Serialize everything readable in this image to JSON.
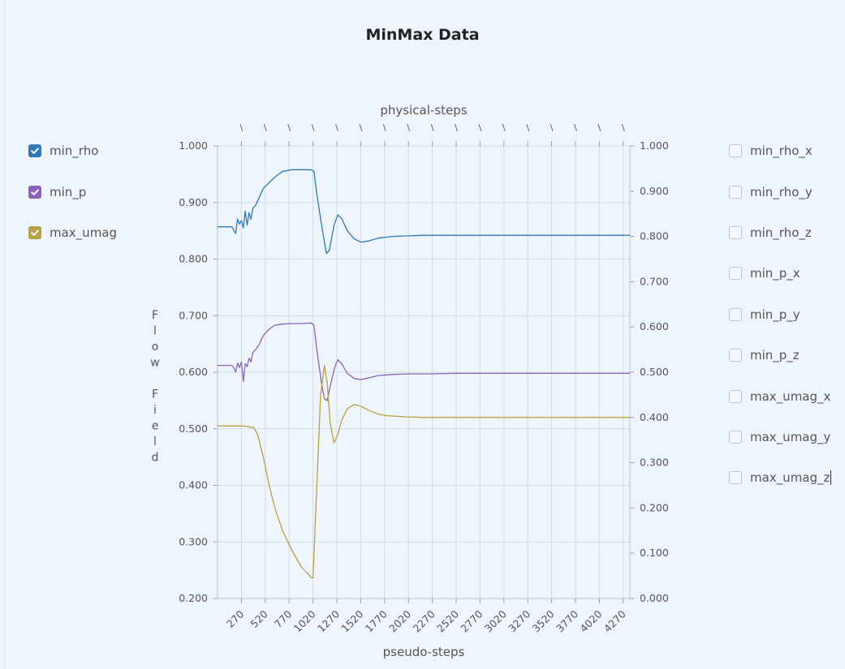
{
  "title": "MinMax Data",
  "left_legend": [
    {
      "label": "min_rho",
      "checked": true,
      "color": "#2f79b6"
    },
    {
      "label": "min_p",
      "checked": true,
      "color": "#8a63b8"
    },
    {
      "label": "max_umag",
      "checked": true,
      "color": "#b89f48"
    }
  ],
  "right_legend": [
    {
      "label": "min_rho_x",
      "checked": false
    },
    {
      "label": "min_rho_y",
      "checked": false
    },
    {
      "label": "min_rho_z",
      "checked": false
    },
    {
      "label": "min_p_x",
      "checked": false
    },
    {
      "label": "min_p_y",
      "checked": false
    },
    {
      "label": "min_p_z",
      "checked": false
    },
    {
      "label": "max_umag_x",
      "checked": false
    },
    {
      "label": "max_umag_y",
      "checked": false
    },
    {
      "label": "max_umag_z",
      "checked": false
    }
  ],
  "chart_data": {
    "type": "line",
    "top_xlabel": "physical-steps",
    "top_tick_labels": [
      "\\",
      "\\",
      "\\",
      "\\",
      "\\",
      "\\",
      "\\",
      "\\",
      "\\",
      "\\",
      "\\",
      "\\",
      "\\",
      "\\",
      "\\",
      "\\",
      "\\"
    ],
    "xlabel": "pseudo-steps",
    "ylabel": "Flow Field",
    "x_ticks": [
      270,
      520,
      770,
      1020,
      1270,
      1520,
      1770,
      2020,
      2270,
      2520,
      2770,
      3020,
      3270,
      3520,
      3770,
      4020,
      4270
    ],
    "xlim": [
      20,
      4340
    ],
    "ylim_left": [
      0.2,
      1.0
    ],
    "ylim_right": [
      0.0,
      1.0
    ],
    "left_ticks": [
      "0.200",
      "0.300",
      "0.400",
      "0.500",
      "0.600",
      "0.700",
      "0.800",
      "0.900",
      "1.000"
    ],
    "right_ticks": [
      "0.000",
      "0.100",
      "0.200",
      "0.300",
      "0.400",
      "0.500",
      "0.600",
      "0.700",
      "0.800",
      "0.900",
      "1.000"
    ],
    "grid": true,
    "series": [
      {
        "name": "min_rho",
        "color": "#2f79b6",
        "axis": "left",
        "x": [
          20,
          170,
          190,
          210,
          230,
          250,
          270,
          290,
          310,
          330,
          350,
          370,
          390,
          420,
          460,
          500,
          560,
          620,
          700,
          800,
          900,
          1000,
          1030,
          1060,
          1110,
          1160,
          1190,
          1240,
          1280,
          1320,
          1380,
          1450,
          1520,
          1600,
          1700,
          1850,
          2000,
          2200,
          2500,
          3000,
          3500,
          4000,
          4340
        ],
        "y": [
          0.857,
          0.857,
          0.851,
          0.845,
          0.871,
          0.862,
          0.868,
          0.855,
          0.885,
          0.86,
          0.882,
          0.87,
          0.89,
          0.895,
          0.91,
          0.925,
          0.935,
          0.945,
          0.955,
          0.958,
          0.958,
          0.958,
          0.955,
          0.915,
          0.86,
          0.81,
          0.815,
          0.86,
          0.878,
          0.872,
          0.85,
          0.836,
          0.83,
          0.832,
          0.837,
          0.84,
          0.841,
          0.842,
          0.842,
          0.842,
          0.842,
          0.842,
          0.842
        ]
      },
      {
        "name": "min_p",
        "color": "#8a63b8",
        "axis": "left",
        "x": [
          20,
          170,
          190,
          210,
          230,
          250,
          270,
          290,
          310,
          330,
          350,
          370,
          390,
          420,
          460,
          500,
          560,
          620,
          700,
          800,
          900,
          1000,
          1030,
          1060,
          1110,
          1140,
          1170,
          1200,
          1250,
          1280,
          1320,
          1380,
          1450,
          1520,
          1600,
          1700,
          1850,
          2000,
          2200,
          2500,
          3000,
          3500,
          4000,
          4340
        ],
        "y": [
          0.612,
          0.612,
          0.608,
          0.6,
          0.616,
          0.608,
          0.618,
          0.584,
          0.615,
          0.61,
          0.625,
          0.618,
          0.635,
          0.64,
          0.65,
          0.665,
          0.676,
          0.683,
          0.685,
          0.686,
          0.686,
          0.687,
          0.683,
          0.64,
          0.58,
          0.553,
          0.55,
          0.575,
          0.61,
          0.622,
          0.615,
          0.598,
          0.589,
          0.587,
          0.59,
          0.594,
          0.596,
          0.597,
          0.597,
          0.598,
          0.598,
          0.598,
          0.598,
          0.598
        ]
      },
      {
        "name": "max_umag",
        "color": "#b89f48",
        "axis": "left",
        "x": [
          20,
          100,
          200,
          300,
          400,
          440,
          500,
          560,
          620,
          700,
          800,
          900,
          960,
          1000,
          1020,
          1060,
          1100,
          1140,
          1170,
          1200,
          1240,
          1280,
          1320,
          1380,
          1450,
          1520,
          1600,
          1700,
          1800,
          1900,
          2000,
          2200,
          2500,
          3000,
          3500,
          4000,
          4340
        ],
        "y": [
          0.505,
          0.505,
          0.505,
          0.505,
          0.502,
          0.49,
          0.45,
          0.4,
          0.36,
          0.32,
          0.285,
          0.255,
          0.245,
          0.237,
          0.236,
          0.4,
          0.56,
          0.612,
          0.58,
          0.51,
          0.475,
          0.49,
          0.515,
          0.535,
          0.543,
          0.54,
          0.533,
          0.526,
          0.523,
          0.522,
          0.521,
          0.52,
          0.52,
          0.52,
          0.52,
          0.52,
          0.52
        ]
      }
    ]
  }
}
